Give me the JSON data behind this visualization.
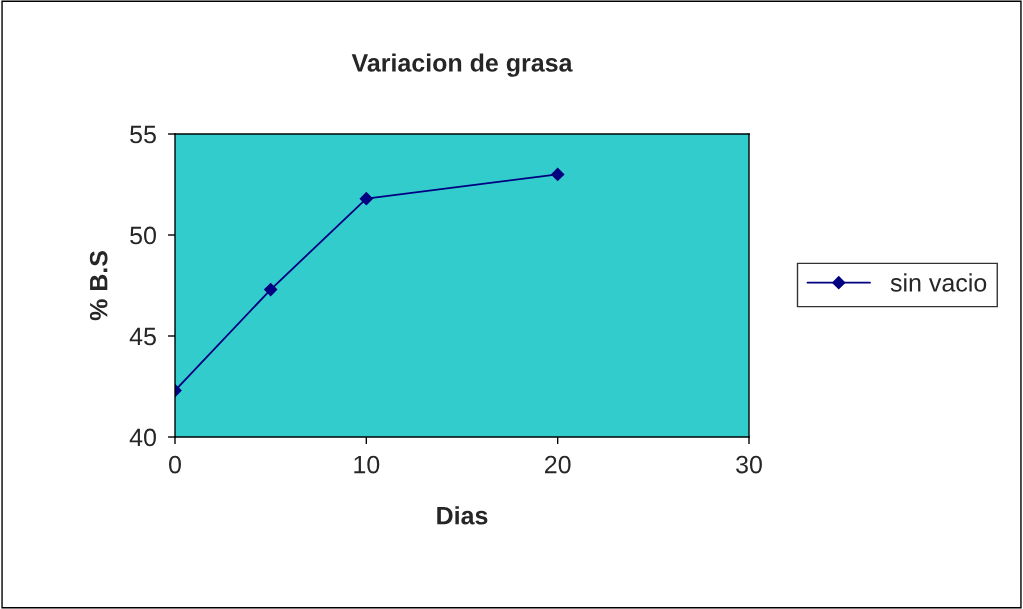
{
  "chart_data": {
    "type": "line",
    "title": "Variacion de grasa",
    "xlabel": "Dias",
    "ylabel": "% B.S",
    "x": [
      0,
      5,
      10,
      20
    ],
    "series": [
      {
        "name": "sin vacio",
        "color": "#000080",
        "values": [
          42.3,
          47.3,
          51.8,
          53.0
        ]
      }
    ],
    "xlim": [
      0,
      30
    ],
    "xticks": [
      0,
      10,
      20,
      30
    ],
    "ylim": [
      40,
      55
    ],
    "yticks": [
      40,
      45,
      50,
      55
    ],
    "grid": false,
    "legend": "right",
    "marker": "diamond",
    "line_style": "solid"
  }
}
